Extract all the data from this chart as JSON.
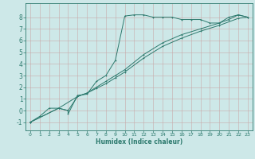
{
  "title": "",
  "xlabel": "Humidex (Indice chaleur)",
  "ylabel": "",
  "background_color": "#cde8e8",
  "line_color": "#2d7a6e",
  "grid_color": "#b8d8d8",
  "xlim": [
    -0.5,
    23.5
  ],
  "ylim": [
    -1.7,
    9.2
  ],
  "xticks": [
    0,
    1,
    2,
    3,
    4,
    5,
    6,
    7,
    8,
    9,
    10,
    11,
    12,
    13,
    14,
    15,
    16,
    17,
    18,
    19,
    20,
    21,
    22,
    23
  ],
  "yticks": [
    -1,
    0,
    1,
    2,
    3,
    4,
    5,
    6,
    7,
    8
  ],
  "line1_x": [
    0,
    1,
    2,
    3,
    4,
    4,
    5,
    6,
    7,
    8,
    9,
    10,
    11,
    12,
    13,
    14,
    15,
    16,
    17,
    18,
    19,
    20,
    21,
    22,
    23
  ],
  "line1_y": [
    -1,
    -0.5,
    0.2,
    0.2,
    0.0,
    -0.3,
    1.3,
    1.4,
    2.5,
    3.0,
    4.3,
    8.1,
    8.2,
    8.2,
    8.0,
    8.0,
    8.0,
    7.8,
    7.8,
    7.8,
    7.5,
    7.5,
    8.0,
    8.2,
    8.0
  ],
  "line2_x": [
    0,
    3,
    4,
    5,
    6,
    7,
    8,
    9,
    10,
    12,
    14,
    16,
    18,
    20,
    21,
    22,
    23
  ],
  "line2_y": [
    -1,
    0.2,
    0.0,
    1.2,
    1.5,
    2.0,
    2.5,
    3.0,
    3.5,
    4.8,
    5.8,
    6.5,
    7.0,
    7.5,
    7.8,
    8.2,
    8.0
  ],
  "line3_x": [
    0,
    3,
    5,
    6,
    7,
    8,
    9,
    10,
    12,
    14,
    16,
    18,
    20,
    22,
    23
  ],
  "line3_y": [
    -1,
    0.2,
    1.2,
    1.5,
    1.9,
    2.3,
    2.8,
    3.3,
    4.5,
    5.5,
    6.2,
    6.8,
    7.3,
    7.9,
    8.0
  ],
  "xlabel_fontsize": 5.5,
  "tick_fontsize": 4.5,
  "ytick_fontsize": 5.5,
  "linewidth": 0.7,
  "markersize": 2.0,
  "markeredgewidth": 0.6
}
